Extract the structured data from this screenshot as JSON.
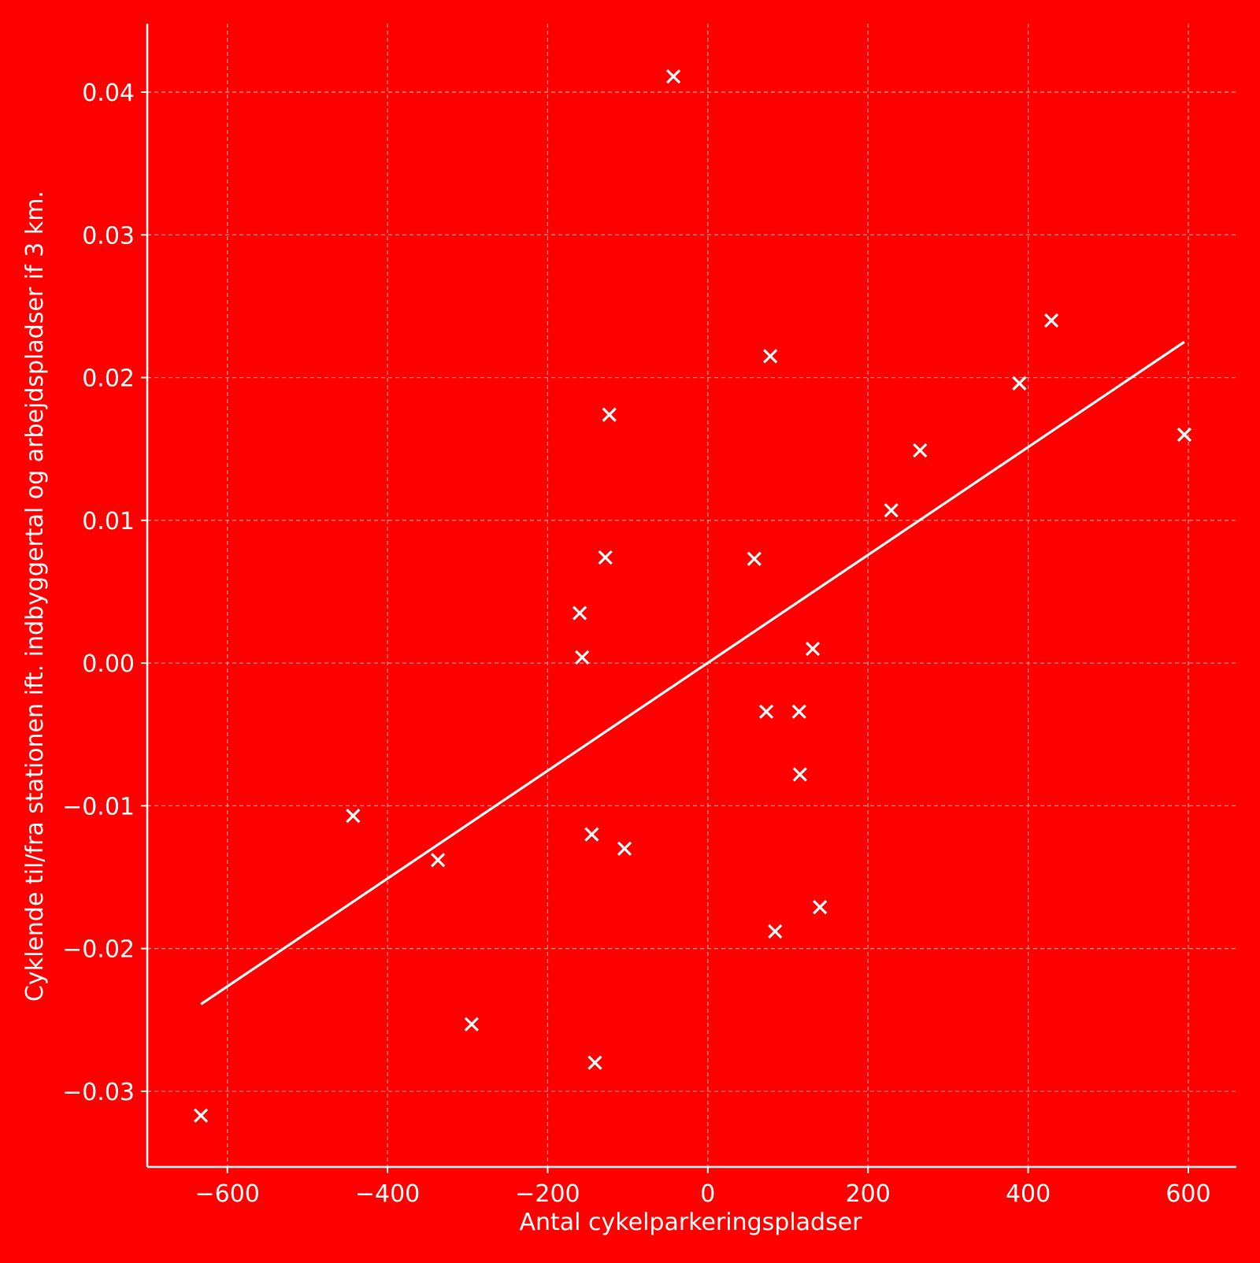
{
  "chart_data": {
    "type": "scatter",
    "title": "",
    "xlabel": "Antal cykelparkeringspladser",
    "ylabel": "Cyklende til/fra stationen ift. indbyggertal og arbejdspladser if 3 km.",
    "xlim": [
      -700,
      660
    ],
    "ylim": [
      -0.0353,
      0.0448
    ],
    "x_ticks": [
      -600,
      -400,
      -200,
      0,
      200,
      400,
      600
    ],
    "x_tick_labels": [
      "−600",
      "−400",
      "−200",
      "0",
      "200",
      "400",
      "600"
    ],
    "y_ticks": [
      -0.03,
      -0.02,
      -0.01,
      0.0,
      0.01,
      0.02,
      0.03,
      0.04
    ],
    "y_tick_labels": [
      "−0.03",
      "−0.02",
      "−0.01",
      "0.00",
      "0.01",
      "0.02",
      "0.03",
      "0.04"
    ],
    "grid": true,
    "colors": {
      "background": "#ff0000",
      "foreground": "#ffffff",
      "grid": "#ff9a9a"
    },
    "marker": "x",
    "series": [
      {
        "points": [
          [
            -633,
            -0.0317
          ],
          [
            -443,
            -0.0107
          ],
          [
            -337,
            -0.0138
          ],
          [
            -295,
            -0.0253
          ],
          [
            -160,
            0.0035
          ],
          [
            -157,
            0.0004
          ],
          [
            -145,
            -0.012
          ],
          [
            -141,
            -0.028
          ],
          [
            -128,
            0.0074
          ],
          [
            -123,
            0.0174
          ],
          [
            -104,
            -0.013
          ],
          [
            -43,
            0.0411
          ],
          [
            58,
            0.0073
          ],
          [
            73,
            -0.0034
          ],
          [
            78,
            0.0215
          ],
          [
            84,
            -0.0188
          ],
          [
            114,
            -0.0034
          ],
          [
            115,
            -0.0078
          ],
          [
            131,
            0.001
          ],
          [
            140,
            -0.0171
          ],
          [
            229,
            0.0107
          ],
          [
            265,
            0.0149
          ],
          [
            389,
            0.0196
          ],
          [
            429,
            0.024
          ],
          [
            595,
            0.016
          ]
        ]
      }
    ],
    "trend_line": {
      "x": [
        -633,
        595
      ],
      "y": [
        -0.0239,
        0.0225
      ]
    }
  }
}
